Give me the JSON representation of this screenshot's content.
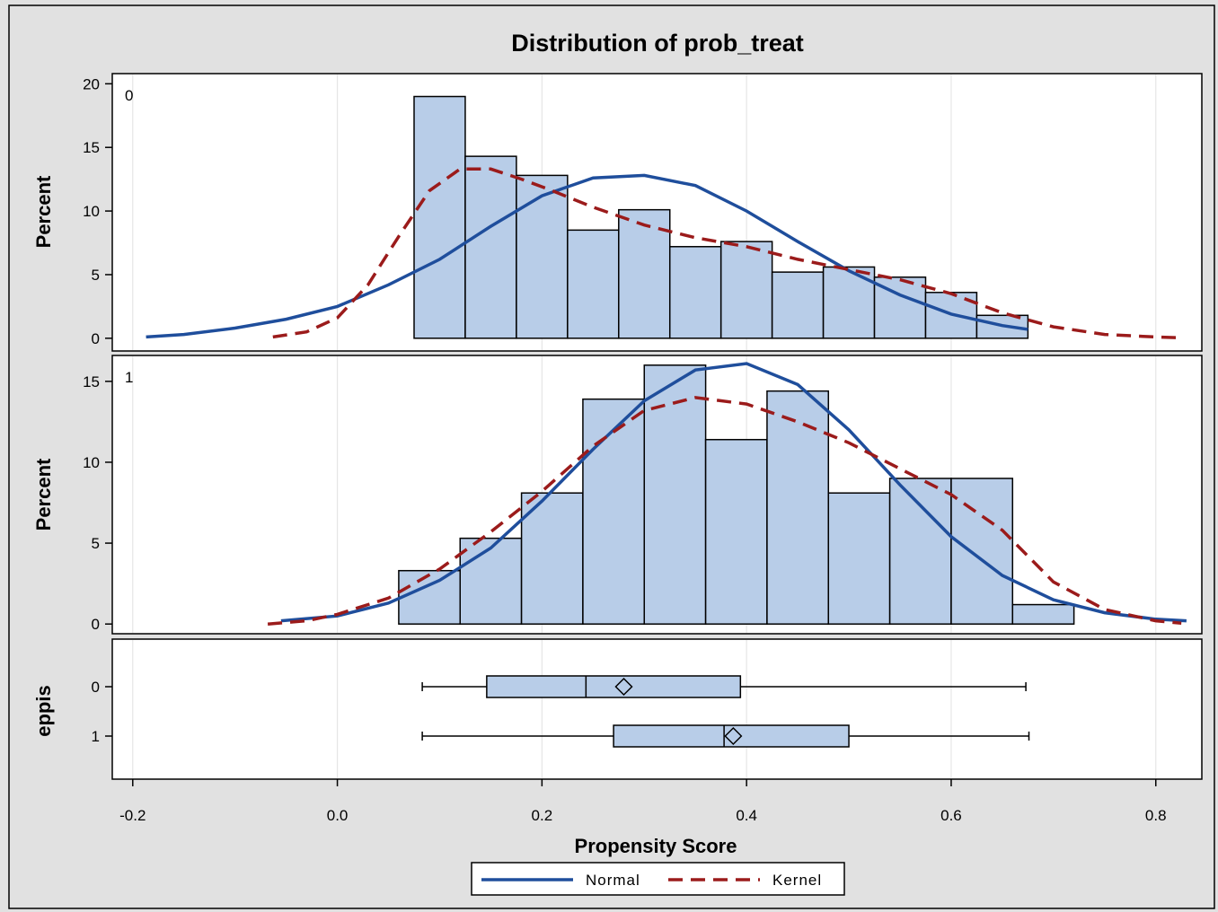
{
  "chart_data": {
    "type": "bar",
    "title": "Distribution of prob_treat",
    "xlabel": "Propensity Score",
    "xlim": [
      -0.22,
      0.845
    ],
    "x_ticks": [
      -0.2,
      0.0,
      0.2,
      0.4,
      0.6,
      0.8
    ],
    "x_tick_labels": [
      "-0.2",
      "0.0",
      "0.2",
      "0.4",
      "0.6",
      "0.8"
    ],
    "grid": true,
    "panels": [
      {
        "label": "0",
        "ylabel": "Percent",
        "ylim": [
          -1,
          20.8
        ],
        "y_ticks": [
          0,
          5,
          10,
          15,
          20
        ],
        "y_tick_labels": [
          "0",
          "5",
          "10",
          "15",
          "20"
        ],
        "bin_width": 0.05,
        "bin_starts": [
          0.075,
          0.125,
          0.175,
          0.225,
          0.275,
          0.325,
          0.375,
          0.425,
          0.475,
          0.525,
          0.575,
          0.625
        ],
        "values": [
          19.0,
          14.3,
          12.8,
          8.5,
          10.1,
          7.2,
          7.6,
          5.2,
          5.6,
          4.8,
          3.6,
          1.8
        ],
        "normal": {
          "x": [
            -0.187,
            -0.15,
            -0.1,
            -0.05,
            0.0,
            0.05,
            0.1,
            0.15,
            0.2,
            0.25,
            0.3,
            0.35,
            0.4,
            0.45,
            0.5,
            0.55,
            0.6,
            0.65,
            0.675
          ],
          "y": [
            0.1,
            0.3,
            0.8,
            1.5,
            2.5,
            4.2,
            6.2,
            8.8,
            11.2,
            12.6,
            12.8,
            12.0,
            10.0,
            7.6,
            5.3,
            3.4,
            1.9,
            1.0,
            0.7
          ]
        },
        "kernel": {
          "x": [
            -0.063,
            -0.03,
            0.0,
            0.03,
            0.06,
            0.09,
            0.12,
            0.15,
            0.18,
            0.21,
            0.25,
            0.3,
            0.35,
            0.4,
            0.45,
            0.5,
            0.55,
            0.6,
            0.65,
            0.7,
            0.75,
            0.8,
            0.82
          ],
          "y": [
            0.1,
            0.5,
            1.6,
            4.2,
            8.0,
            11.6,
            13.3,
            13.3,
            12.5,
            11.6,
            10.3,
            8.9,
            7.9,
            7.2,
            6.2,
            5.4,
            4.6,
            3.5,
            2.0,
            0.9,
            0.3,
            0.1,
            0.05
          ]
        }
      },
      {
        "label": "1",
        "ylabel": "Percent",
        "ylim": [
          -0.6,
          16.6
        ],
        "y_ticks": [
          0,
          5,
          10,
          15
        ],
        "y_tick_labels": [
          "0",
          "5",
          "10",
          "15"
        ],
        "bin_width": 0.06,
        "bin_starts": [
          0.06,
          0.12,
          0.18,
          0.24,
          0.3,
          0.36,
          0.42,
          0.48,
          0.54,
          0.6,
          0.66
        ],
        "values": [
          3.3,
          5.3,
          8.1,
          13.9,
          16.0,
          11.4,
          14.4,
          8.1,
          9.0,
          9.0,
          1.2
        ],
        "normal": {
          "x": [
            -0.055,
            0.0,
            0.05,
            0.1,
            0.15,
            0.2,
            0.25,
            0.3,
            0.35,
            0.4,
            0.45,
            0.5,
            0.55,
            0.6,
            0.65,
            0.7,
            0.75,
            0.8,
            0.83
          ],
          "y": [
            0.2,
            0.5,
            1.3,
            2.7,
            4.7,
            7.6,
            10.8,
            13.8,
            15.7,
            16.1,
            14.8,
            12.0,
            8.6,
            5.4,
            3.0,
            1.5,
            0.7,
            0.3,
            0.2
          ]
        },
        "kernel": {
          "x": [
            -0.068,
            -0.03,
            0.0,
            0.05,
            0.1,
            0.15,
            0.2,
            0.25,
            0.3,
            0.35,
            0.4,
            0.45,
            0.5,
            0.55,
            0.6,
            0.65,
            0.7,
            0.75,
            0.8,
            0.825
          ],
          "y": [
            0.0,
            0.2,
            0.6,
            1.6,
            3.4,
            5.7,
            8.2,
            11.0,
            13.2,
            14.0,
            13.6,
            12.5,
            11.2,
            9.6,
            8.0,
            5.8,
            2.6,
            0.9,
            0.2,
            0.05
          ]
        }
      }
    ],
    "boxplot": {
      "ylabel": "eppis",
      "groups": [
        {
          "label": "0",
          "min": 0.083,
          "q1": 0.146,
          "median": 0.243,
          "mean": 0.28,
          "q3": 0.394,
          "max": 0.673
        },
        {
          "label": "1",
          "min": 0.083,
          "q1": 0.27,
          "median": 0.378,
          "mean": 0.387,
          "q3": 0.5,
          "max": 0.676
        }
      ]
    },
    "legend": {
      "position": "bottom-center",
      "entries": [
        {
          "name": "Normal",
          "color": "#1f4e9c",
          "style": "solid"
        },
        {
          "name": "Kernel",
          "color": "#9b1b1b",
          "style": "dashed"
        }
      ]
    },
    "colors": {
      "bar_fill": "#b8cde8",
      "normal": "#1f4e9c",
      "kernel": "#9b1b1b",
      "background": "#e1e1e1"
    }
  }
}
